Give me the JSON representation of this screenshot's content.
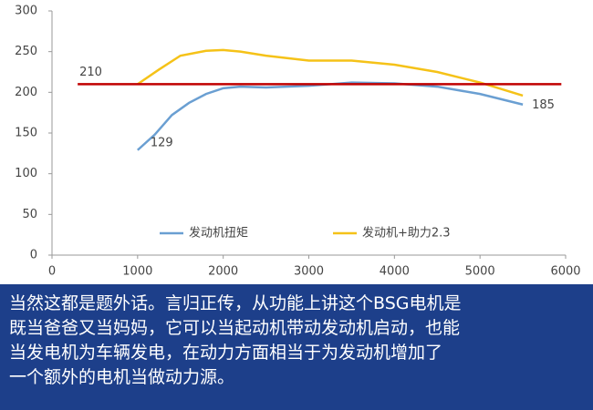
{
  "chart_data": {
    "type": "line",
    "series": [
      {
        "name": "发动机扭矩",
        "color": "#6a9fd2",
        "x": [
          1000,
          1200,
          1400,
          1600,
          1800,
          2000,
          2200,
          2500,
          3000,
          3500,
          4000,
          4500,
          5000,
          5500
        ],
        "values": [
          129,
          148,
          172,
          187,
          198,
          205,
          207,
          206,
          208,
          212,
          211,
          207,
          198,
          185
        ]
      },
      {
        "name": "发动机+助力2.3",
        "color": "#f5c218",
        "x": [
          1000,
          1250,
          1500,
          1800,
          2000,
          2200,
          2500,
          3000,
          3500,
          4000,
          4500,
          5000,
          5500
        ],
        "values": [
          210,
          228,
          245,
          251,
          252,
          250,
          245,
          239,
          239,
          234,
          225,
          212,
          196
        ]
      }
    ],
    "reference_line": {
      "value": 210,
      "label": "210",
      "color": "#c00000",
      "x_range": [
        300,
        5950
      ]
    },
    "xlim": [
      0,
      6000
    ],
    "xticks": [
      0,
      1000,
      2000,
      3000,
      4000,
      5000,
      6000
    ],
    "ylim": [
      0,
      300
    ],
    "yticks": [
      0,
      50,
      100,
      150,
      200,
      250,
      300
    ]
  },
  "caption": {
    "lines": [
      "当然这都是题外话。言归正传，从功能上讲这个BSG电机是",
      "既当爸爸又当妈妈，它可以当起动机带动发动机启动，也能",
      "当发电机为车辆发电，在动力方面相当于为发动机增加了",
      "一个额外的电机当做动力源。"
    ]
  }
}
